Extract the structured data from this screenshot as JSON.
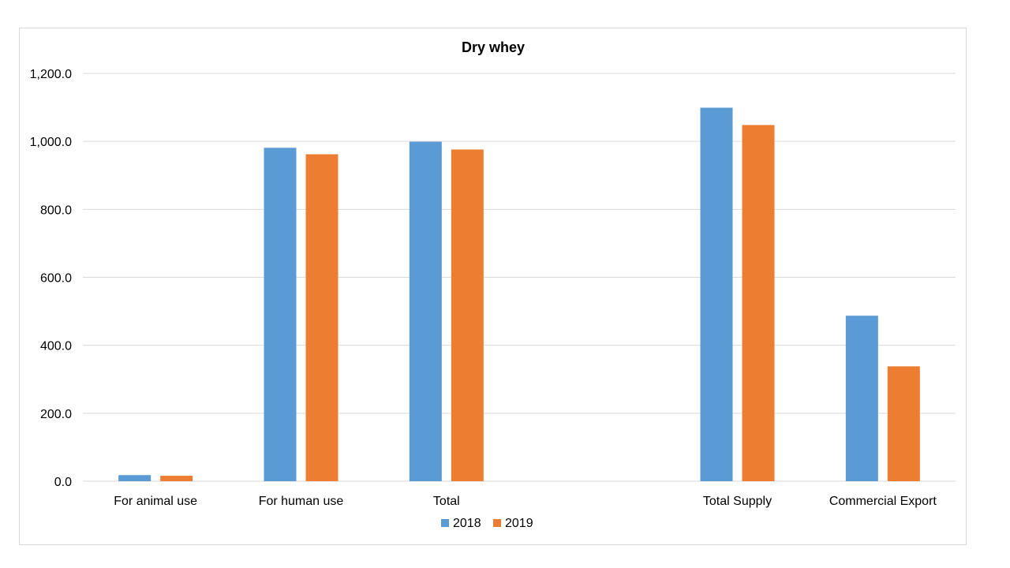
{
  "chart_data": {
    "type": "bar",
    "title": "Dry whey",
    "xlabel": "",
    "ylabel": "",
    "ylim": [
      0,
      1200
    ],
    "yticks": [
      0,
      200,
      400,
      600,
      800,
      1000,
      1200
    ],
    "ytick_labels": [
      "0.0",
      "200.0",
      "400.0",
      "600.0",
      "800.0",
      "1,000.0",
      "1,200.0"
    ],
    "categories": [
      "For animal use",
      "For human use",
      "Total",
      "",
      "Total Supply",
      "Commercial Export"
    ],
    "series": [
      {
        "name": "2018",
        "color": "#5b9bd5",
        "values": [
          18,
          981,
          999,
          null,
          1099,
          487
        ]
      },
      {
        "name": "2019",
        "color": "#ed7d31",
        "values": [
          16,
          962,
          976,
          null,
          1048,
          338
        ]
      }
    ],
    "grid": true,
    "legend_position": "bottom-center"
  }
}
